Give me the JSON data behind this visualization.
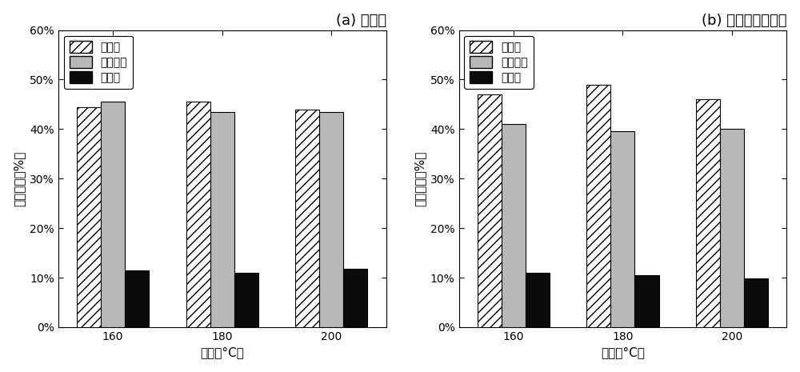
{
  "subplot_a": {
    "title": "(a) 水热法",
    "temperatures": [
      "160",
      "180",
      "200"
    ],
    "cellulose": [
      44.5,
      45.5,
      44.0
    ],
    "hemicellulose": [
      45.5,
      43.5,
      43.5
    ],
    "lignin": [
      11.5,
      11.0,
      11.8
    ]
  },
  "subplot_b": {
    "title": "(b) 细菌强化水热法",
    "temperatures": [
      "160",
      "180",
      "200"
    ],
    "cellulose": [
      47.0,
      49.0,
      46.0
    ],
    "hemicellulose": [
      41.0,
      39.5,
      40.0
    ],
    "lignin": [
      11.0,
      10.5,
      9.8
    ]
  },
  "ylabel": "组成比例（%）",
  "xlabel": "温度（°C）",
  "ylim": [
    0,
    0.6
  ],
  "yticks": [
    0.0,
    0.1,
    0.2,
    0.3,
    0.4,
    0.5,
    0.6
  ],
  "ytick_labels": [
    "0%",
    "10%",
    "20%",
    "30%",
    "40%",
    "50%",
    "60%"
  ],
  "legend_labels": [
    "维维素",
    "半维维素",
    "木质素"
  ],
  "bar_width": 0.22,
  "cellulose_color": "white",
  "cellulose_hatch": "///",
  "hemicellulose_color": "#b8b8b8",
  "hemicellulose_hatch": "",
  "lignin_color": "#0a0a0a",
  "lignin_hatch": "",
  "fig_background": "white",
  "axes_background": "white",
  "title_fontsize": 13,
  "label_fontsize": 11,
  "tick_fontsize": 10,
  "legend_fontsize": 10
}
